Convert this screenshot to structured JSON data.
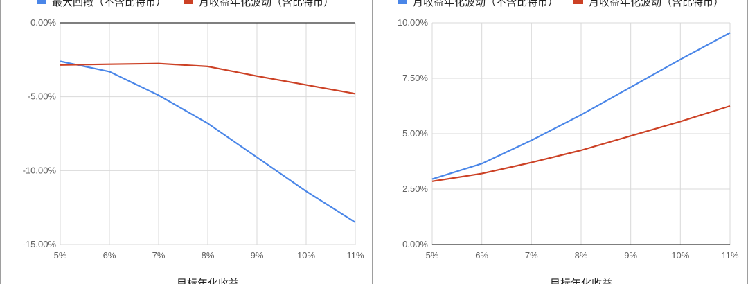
{
  "chart_data": [
    {
      "type": "line",
      "x": [
        "5%",
        "6%",
        "7%",
        "8%",
        "9%",
        "10%",
        "11%"
      ],
      "xlabel": "目标年化收益",
      "ylabel": "",
      "ylim": [
        -15,
        0
      ],
      "yticks": [
        "0.00%",
        "-5.00%",
        "-10.00%",
        "-15.00%"
      ],
      "grid": true,
      "legend": "top",
      "series": [
        {
          "name": "最大回撤（不含比特币）",
          "color": "#4a86e8",
          "values": [
            -2.6,
            -3.3,
            -4.9,
            -6.8,
            -9.1,
            -11.4,
            -13.5
          ]
        },
        {
          "name": "月收益年化波动（含比特币）",
          "color": "#cc4125",
          "values": [
            -2.85,
            -2.8,
            -2.75,
            -2.95,
            -3.6,
            -4.2,
            -4.8
          ]
        }
      ]
    },
    {
      "type": "line",
      "x": [
        "5%",
        "6%",
        "7%",
        "8%",
        "9%",
        "10%",
        "11%"
      ],
      "xlabel": "目标年化收益",
      "ylabel": "",
      "ylim": [
        0,
        10
      ],
      "yticks": [
        "10.00%",
        "7.50%",
        "5.00%",
        "2.50%",
        "0.00%"
      ],
      "grid": true,
      "legend": "top",
      "series": [
        {
          "name": "月收益年化波动（不含比特币）",
          "color": "#4a86e8",
          "values": [
            2.95,
            3.65,
            4.7,
            5.85,
            7.1,
            8.35,
            9.55
          ]
        },
        {
          "name": "月收益年化波动（含比特币）",
          "color": "#cc4125",
          "values": [
            2.85,
            3.2,
            3.7,
            4.25,
            4.9,
            5.55,
            6.25
          ]
        }
      ]
    }
  ]
}
